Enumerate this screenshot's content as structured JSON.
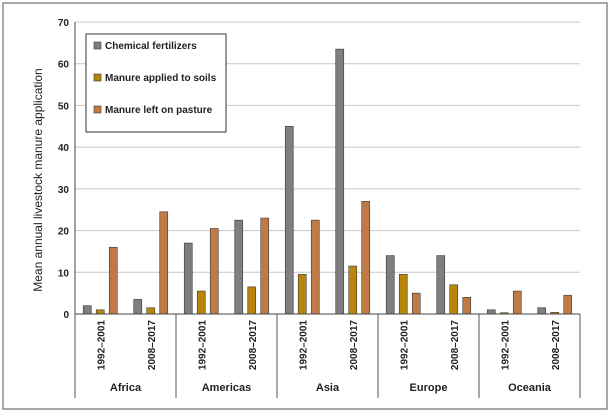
{
  "chart_data": {
    "type": "bar",
    "ylabel": "Mean annual livestock manure application",
    "ylim": [
      0,
      70
    ],
    "yticks": [
      0,
      10,
      20,
      30,
      40,
      50,
      60,
      70
    ],
    "grid": "horizontal",
    "legend_position": "top-left",
    "groups": [
      {
        "region": "Africa",
        "periods": [
          "1992–2001",
          "2008–2017"
        ]
      },
      {
        "region": "Americas",
        "periods": [
          "1992–2001",
          "2008–2017"
        ]
      },
      {
        "region": "Asia",
        "periods": [
          "1992–2001",
          "2008–2017"
        ]
      },
      {
        "region": "Europe",
        "periods": [
          "1992–2001",
          "2008–2017"
        ]
      },
      {
        "region": "Oceania",
        "periods": [
          "1992–2001",
          "2008–2017"
        ]
      }
    ],
    "series": [
      {
        "name": "Chemical fertilizers",
        "color": "#7f7f7f",
        "values": [
          2,
          3.5,
          17,
          22.5,
          45,
          63.5,
          14,
          14,
          1,
          1.5
        ]
      },
      {
        "name": "Manure applied to soils",
        "color": "#b8860b",
        "values": [
          1,
          1.5,
          5.5,
          6.5,
          9.5,
          11.5,
          9.5,
          7,
          0.3,
          0.4
        ]
      },
      {
        "name": "Manure left on pasture",
        "color": "#c07a45",
        "values": [
          16,
          24.5,
          20.5,
          23,
          22.5,
          27,
          5,
          4,
          5.5,
          4.5
        ]
      }
    ]
  }
}
